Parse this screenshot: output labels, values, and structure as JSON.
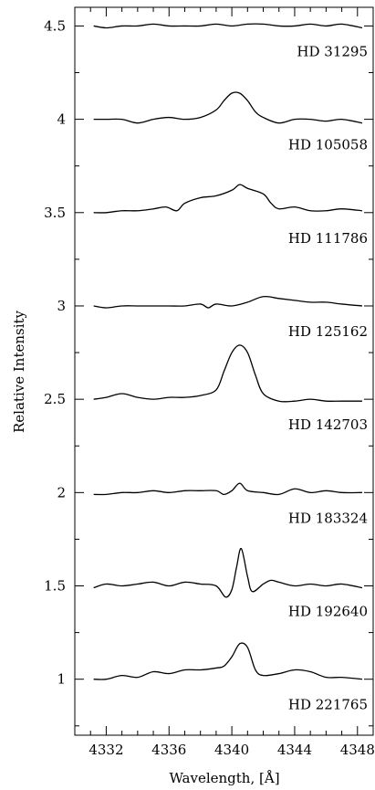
{
  "chart_data": {
    "type": "line",
    "xlabel": "Wavelength, [Å]",
    "ylabel": "Relative Intensity",
    "xlim": [
      4330.0,
      4349.0
    ],
    "ylim": [
      0.7,
      4.6
    ],
    "x_major_ticks": [
      4332,
      4336,
      4340,
      4344,
      4348
    ],
    "x_minor_step": 1,
    "y_major_ticks": [
      1,
      1.5,
      2,
      2.5,
      3,
      3.5,
      4,
      4.5
    ],
    "y_minor_step": 0.25,
    "grid": false,
    "legend": "none",
    "series": [
      {
        "name": "HD 31295",
        "x": [
          4331.2,
          4332,
          4333,
          4334,
          4335,
          4336,
          4337,
          4338,
          4339,
          4340,
          4341,
          4342,
          4343,
          4344,
          4345,
          4346,
          4347,
          4348.3
        ],
        "y": [
          4.5,
          4.49,
          4.5,
          4.5,
          4.51,
          4.5,
          4.5,
          4.5,
          4.51,
          4.5,
          4.51,
          4.51,
          4.5,
          4.5,
          4.51,
          4.5,
          4.51,
          4.49
        ]
      },
      {
        "name": "HD 105058",
        "x": [
          4331.2,
          4332,
          4333,
          4334,
          4335,
          4336,
          4337,
          4338,
          4339,
          4339.5,
          4340,
          4340.5,
          4341,
          4341.5,
          4342,
          4343,
          4344,
          4345,
          4346,
          4347,
          4348.3
        ],
        "y": [
          4.0,
          4.0,
          4.0,
          3.98,
          4.0,
          4.01,
          4.0,
          4.01,
          4.05,
          4.1,
          4.14,
          4.14,
          4.1,
          4.04,
          4.01,
          3.98,
          4.0,
          4.0,
          3.99,
          4.0,
          3.98
        ]
      },
      {
        "name": "HD 111786",
        "x": [
          4331.2,
          4332,
          4333,
          4334,
          4335,
          4335.8,
          4336.5,
          4337,
          4338,
          4339,
          4340,
          4340.5,
          4341,
          4342,
          4342.5,
          4343,
          4344,
          4345,
          4346,
          4347,
          4348.3
        ],
        "y": [
          3.5,
          3.5,
          3.51,
          3.51,
          3.52,
          3.53,
          3.51,
          3.55,
          3.58,
          3.59,
          3.62,
          3.65,
          3.63,
          3.6,
          3.55,
          3.52,
          3.53,
          3.51,
          3.51,
          3.52,
          3.51
        ]
      },
      {
        "name": "HD 125162",
        "x": [
          4331.2,
          4332,
          4333,
          4334,
          4335,
          4336,
          4337,
          4338,
          4338.5,
          4339,
          4340,
          4341,
          4342,
          4343,
          4344,
          4345,
          4346,
          4347,
          4348.3
        ],
        "y": [
          3.0,
          2.99,
          3.0,
          3.0,
          3.0,
          3.0,
          3.0,
          3.01,
          2.99,
          3.01,
          3.0,
          3.02,
          3.05,
          3.04,
          3.03,
          3.02,
          3.02,
          3.01,
          3.0
        ]
      },
      {
        "name": "HD 142703",
        "x": [
          4331.2,
          4332,
          4333,
          4334,
          4335,
          4336,
          4337,
          4338,
          4339,
          4339.5,
          4340,
          4340.5,
          4341,
          4341.5,
          4342,
          4343,
          4344,
          4345,
          4346,
          4347,
          4348.3
        ],
        "y": [
          2.5,
          2.51,
          2.53,
          2.51,
          2.5,
          2.51,
          2.51,
          2.52,
          2.55,
          2.65,
          2.75,
          2.79,
          2.75,
          2.63,
          2.53,
          2.49,
          2.49,
          2.5,
          2.49,
          2.49,
          2.49
        ]
      },
      {
        "name": "HD 183324",
        "x": [
          4331.2,
          4332,
          4333,
          4334,
          4335,
          4336,
          4337,
          4338,
          4339,
          4339.5,
          4340,
          4340.5,
          4341,
          4342,
          4343,
          4344,
          4345,
          4346,
          4347,
          4348.3
        ],
        "y": [
          1.99,
          1.99,
          2.0,
          2.0,
          2.01,
          2.0,
          2.01,
          2.01,
          2.01,
          1.99,
          2.01,
          2.05,
          2.01,
          2.0,
          1.99,
          2.02,
          2.0,
          2.01,
          2.0,
          2.0
        ]
      },
      {
        "name": "HD 192640",
        "x": [
          4331.2,
          4332,
          4333,
          4334,
          4335,
          4336,
          4337,
          4338,
          4339,
          4339.6,
          4340,
          4340.3,
          4340.6,
          4341,
          4341.3,
          4342,
          4342.5,
          4343,
          4344,
          4345,
          4346,
          4347,
          4348.3
        ],
        "y": [
          1.49,
          1.51,
          1.5,
          1.51,
          1.52,
          1.5,
          1.52,
          1.51,
          1.5,
          1.44,
          1.48,
          1.6,
          1.7,
          1.55,
          1.47,
          1.51,
          1.53,
          1.52,
          1.5,
          1.51,
          1.5,
          1.51,
          1.49
        ]
      },
      {
        "name": "HD 221765",
        "x": [
          4331.2,
          4332,
          4333,
          4334,
          4335,
          4336,
          4337,
          4338,
          4339,
          4339.5,
          4340,
          4340.5,
          4341,
          4341.5,
          4342,
          4343,
          4344,
          4345,
          4346,
          4347,
          4348.3
        ],
        "y": [
          1.0,
          1.0,
          1.02,
          1.01,
          1.04,
          1.03,
          1.05,
          1.05,
          1.06,
          1.07,
          1.12,
          1.19,
          1.17,
          1.05,
          1.02,
          1.03,
          1.05,
          1.04,
          1.01,
          1.01,
          1.0
        ]
      }
    ]
  }
}
